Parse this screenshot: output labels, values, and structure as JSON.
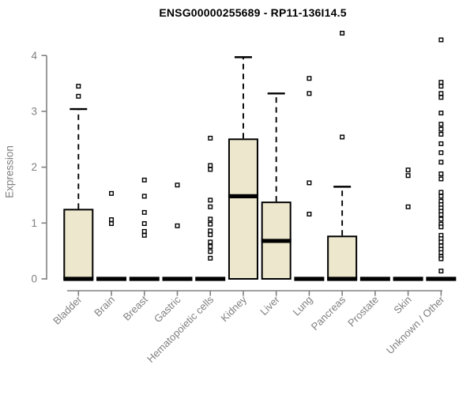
{
  "chart_data": {
    "type": "boxplot",
    "title": "ENSG00000255689 - RP11-136I14.5",
    "ylabel": "Expression",
    "xlabel": "",
    "ylim": [
      0,
      4
    ],
    "yticks": [
      0,
      1,
      2,
      3,
      4
    ],
    "grid": false,
    "legend": "none",
    "colors": {
      "background": "#FFFFFF",
      "box_fill": "#EDE8CD",
      "box_border": "#000000",
      "median": "#000000",
      "whisker": "#000000",
      "outlier_fill": "#FFFFFF",
      "outlier_border": "#000000",
      "axis": "#808080",
      "tick_label": "#808080",
      "title": "#000000"
    },
    "categories": [
      "Bladder",
      "Brain",
      "Breast",
      "Gastric",
      "Hematopoietic cells",
      "Kidney",
      "Liver",
      "Lung",
      "Pancreas",
      "Prostate",
      "Skin",
      "Unknown / Other"
    ],
    "boxes": [
      {
        "name": "Bladder",
        "q1": 0,
        "median": 0,
        "q3": 1.24,
        "whisker_low": 0,
        "whisker_high": 3.04,
        "outliers": [
          3.45,
          3.27
        ]
      },
      {
        "name": "Brain",
        "q1": 0,
        "median": 0,
        "q3": 0,
        "whisker_low": 0,
        "whisker_high": 0,
        "outliers": [
          1.53,
          1.06,
          0.99
        ]
      },
      {
        "name": "Breast",
        "q1": 0,
        "median": 0,
        "q3": 0,
        "whisker_low": 0,
        "whisker_high": 0,
        "outliers": [
          1.77,
          1.48,
          1.19,
          0.99,
          0.85,
          0.78
        ]
      },
      {
        "name": "Gastric",
        "q1": 0,
        "median": 0,
        "q3": 0,
        "whisker_low": 0,
        "whisker_high": 0,
        "outliers": [
          1.68,
          0.95
        ]
      },
      {
        "name": "Hematopoietic cells",
        "q1": 0,
        "median": 0,
        "q3": 0,
        "whisker_low": 0,
        "whisker_high": 0,
        "outliers": [
          2.52,
          2.03,
          1.96,
          1.41,
          1.29,
          1.07,
          0.98,
          0.86,
          0.79,
          0.66,
          0.58,
          0.49,
          0.37
        ]
      },
      {
        "name": "Kidney",
        "q1": 0,
        "median": 1.48,
        "q3": 2.5,
        "whisker_low": 0,
        "whisker_high": 3.97,
        "outliers": []
      },
      {
        "name": "Liver",
        "q1": 0,
        "median": 0.68,
        "q3": 1.37,
        "whisker_low": 0,
        "whisker_high": 3.32,
        "outliers": []
      },
      {
        "name": "Lung",
        "q1": 0,
        "median": 0,
        "q3": 0,
        "whisker_low": 0,
        "whisker_high": 0,
        "outliers": [
          3.59,
          3.32,
          1.72,
          1.16
        ]
      },
      {
        "name": "Pancreas",
        "q1": 0,
        "median": 0,
        "q3": 0.76,
        "whisker_low": 0,
        "whisker_high": 1.65,
        "outliers": [
          4.4,
          2.54
        ]
      },
      {
        "name": "Prostate",
        "q1": 0,
        "median": 0,
        "q3": 0,
        "whisker_low": 0,
        "whisker_high": 0,
        "outliers": []
      },
      {
        "name": "Skin",
        "q1": 0,
        "median": 0,
        "q3": 0,
        "whisker_low": 0,
        "whisker_high": 0,
        "outliers": [
          1.95,
          1.85,
          1.29
        ]
      },
      {
        "name": "Unknown / Other",
        "q1": 0,
        "median": 0,
        "q3": 0,
        "whisker_low": 0,
        "whisker_high": 0,
        "outliers": [
          4.28,
          3.52,
          3.45,
          3.32,
          3.25,
          2.97,
          2.77,
          2.68,
          2.59,
          2.42,
          2.26,
          2.09,
          1.88,
          1.79,
          1.55,
          1.48,
          1.39,
          1.33,
          1.27,
          1.21,
          1.15,
          1.07,
          0.98,
          0.93,
          0.78,
          0.72,
          0.66,
          0.59,
          0.53,
          0.47,
          0.4,
          0.36,
          0.14
        ]
      }
    ]
  }
}
